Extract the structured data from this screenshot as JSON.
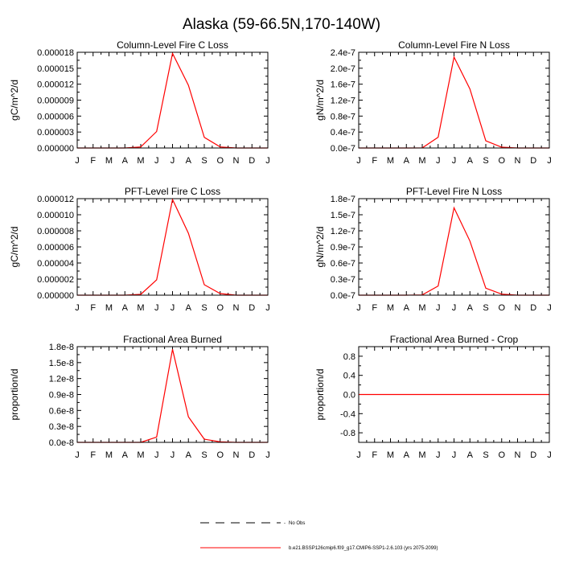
{
  "figure": {
    "title": "Alaska (59-66.5N,170-140W)"
  },
  "chart_data": [
    {
      "type": "line",
      "title": "Column-Level Fire C Loss",
      "ylabel": "gC/m^2/d",
      "categories": [
        "J",
        "F",
        "M",
        "A",
        "M",
        "J",
        "J",
        "A",
        "S",
        "O",
        "N",
        "D",
        "J"
      ],
      "ylim": [
        0,
        1.8e-05
      ],
      "yticks": [
        "0.000000",
        "0.000003",
        "0.000006",
        "0.000009",
        "0.000012",
        "0.000015",
        "0.000018"
      ],
      "values": [
        0.0,
        0.0,
        0.0,
        0.0,
        2e-07,
        3.1e-06,
        1.78e-05,
        1.18e-05,
        2e-06,
        2e-07,
        0.0,
        0.0,
        0.0
      ]
    },
    {
      "type": "line",
      "title": "Column-Level Fire N Loss",
      "ylabel": "gN/m^2/d",
      "categories": [
        "J",
        "F",
        "M",
        "A",
        "M",
        "J",
        "J",
        "A",
        "S",
        "O",
        "N",
        "D",
        "J"
      ],
      "ylim": [
        0,
        2.4e-07
      ],
      "yticks": [
        "0.0e-7",
        "0.4e-7",
        "0.8e-7",
        "1.2e-7",
        "1.6e-7",
        "2.0e-7",
        "2.4e-7"
      ],
      "values": [
        0.0,
        0.0,
        0.0,
        0.0,
        3e-10,
        2.7e-08,
        2.28e-07,
        1.48e-07,
        1.8e-08,
        2e-09,
        0.0,
        0.0,
        0.0
      ]
    },
    {
      "type": "line",
      "title": "PFT-Level Fire C Loss",
      "ylabel": "gC/m^2/d",
      "categories": [
        "J",
        "F",
        "M",
        "A",
        "M",
        "J",
        "J",
        "A",
        "S",
        "O",
        "N",
        "D",
        "J"
      ],
      "ylim": [
        0,
        1.2e-05
      ],
      "yticks": [
        "0.000000",
        "0.000002",
        "0.000004",
        "0.000006",
        "0.000008",
        "0.000010",
        "0.000012"
      ],
      "values": [
        0.0,
        0.0,
        0.0,
        0.0,
        1e-07,
        1.9e-06,
        1.19e-05,
        7.7e-06,
        1.3e-06,
        2e-07,
        0.0,
        0.0,
        0.0
      ]
    },
    {
      "type": "line",
      "title": "PFT-Level Fire N Loss",
      "ylabel": "gN/m^2/d",
      "categories": [
        "J",
        "F",
        "M",
        "A",
        "M",
        "J",
        "J",
        "A",
        "S",
        "O",
        "N",
        "D",
        "J"
      ],
      "ylim": [
        0,
        1.8e-07
      ],
      "yticks": [
        "0.0e-7",
        "0.3e-7",
        "0.6e-7",
        "0.9e-7",
        "1.2e-7",
        "1.5e-7",
        "1.8e-7"
      ],
      "values": [
        0.0,
        0.0,
        0.0,
        0.0,
        5e-10,
        1.7e-08,
        1.63e-07,
        1.01e-07,
        1.3e-08,
        2e-09,
        0.0,
        0.0,
        0.0
      ]
    },
    {
      "type": "line",
      "title": "Fractional Area Burned",
      "ylabel": "proportion/d",
      "categories": [
        "J",
        "F",
        "M",
        "A",
        "M",
        "J",
        "J",
        "A",
        "S",
        "O",
        "N",
        "D",
        "J"
      ],
      "ylim": [
        0,
        1.8e-08
      ],
      "yticks": [
        "0.0e-8",
        "0.3e-8",
        "0.6e-8",
        "0.9e-8",
        "1.2e-8",
        "1.5e-8",
        "1.8e-8"
      ],
      "values": [
        0.0,
        0.0,
        0.0,
        0.0,
        0.0,
        1e-09,
        1.75e-08,
        4.8e-09,
        6e-10,
        1e-10,
        0.0,
        0.0,
        0.0
      ]
    },
    {
      "type": "line",
      "title": "Fractional Area Burned - Crop",
      "ylabel": "proportion/d",
      "categories": [
        "J",
        "F",
        "M",
        "A",
        "M",
        "J",
        "J",
        "A",
        "S",
        "O",
        "N",
        "D",
        "J"
      ],
      "ylim": [
        -1.0,
        1.0
      ],
      "yticks": [
        "-0.8",
        "-0.4",
        "0.0",
        "0.4",
        "0.8"
      ],
      "ytick_values": [
        -0.8,
        -0.4,
        0.0,
        0.4,
        0.8
      ],
      "values": [
        0,
        0,
        0,
        0,
        0,
        0,
        0,
        0,
        0,
        0,
        0,
        0,
        0
      ]
    }
  ],
  "legend": {
    "obs_label": "No Obs",
    "model_label": "b.e21.BSSP126cmip6.f09_g17.CMIP6-SSP1-2.6.103 (yrs 2075-2099)",
    "model_color": "#ff0000",
    "obs_color": "#000000"
  }
}
